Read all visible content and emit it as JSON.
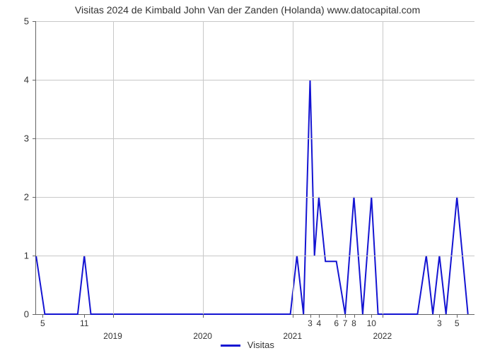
{
  "chart": {
    "type": "line",
    "title": "Visitas 2024 de Kimbald John Van der Zanden (Holanda) www.datocapital.com",
    "title_fontsize": 14,
    "background_color": "#ffffff",
    "grid_color": "#c8c8c8",
    "axis_color": "#646464",
    "line_color": "#1414d2",
    "line_width": 2,
    "label_fontsize": 13,
    "ylim": [
      0,
      5
    ],
    "ytick_step": 1,
    "yticks": [
      0,
      1,
      2,
      3,
      4,
      5
    ],
    "xticks_minor": [
      {
        "pos": 0.015,
        "label": "5"
      },
      {
        "pos": 0.11,
        "label": "11"
      },
      {
        "pos": 0.625,
        "label": "3"
      },
      {
        "pos": 0.645,
        "label": "4"
      },
      {
        "pos": 0.685,
        "label": "6"
      },
      {
        "pos": 0.705,
        "label": "7"
      },
      {
        "pos": 0.725,
        "label": "8"
      },
      {
        "pos": 0.765,
        "label": "10"
      },
      {
        "pos": 0.92,
        "label": "3"
      },
      {
        "pos": 0.96,
        "label": "5"
      }
    ],
    "xticks_year": [
      {
        "pos": 0.175,
        "label": "2019"
      },
      {
        "pos": 0.38,
        "label": "2020"
      },
      {
        "pos": 0.585,
        "label": "2021"
      },
      {
        "pos": 0.79,
        "label": "2022"
      }
    ],
    "series": [
      {
        "name": "Visitas",
        "color": "#1414d2",
        "points": [
          [
            0.0,
            1.0
          ],
          [
            0.02,
            0.0
          ],
          [
            0.095,
            0.0
          ],
          [
            0.11,
            1.0
          ],
          [
            0.125,
            0.0
          ],
          [
            0.58,
            0.0
          ],
          [
            0.595,
            1.0
          ],
          [
            0.61,
            0.0
          ],
          [
            0.625,
            4.0
          ],
          [
            0.635,
            1.0
          ],
          [
            0.645,
            2.0
          ],
          [
            0.66,
            0.9
          ],
          [
            0.685,
            0.9
          ],
          [
            0.705,
            0.0
          ],
          [
            0.725,
            2.0
          ],
          [
            0.745,
            0.0
          ],
          [
            0.765,
            2.0
          ],
          [
            0.78,
            0.0
          ],
          [
            0.87,
            0.0
          ],
          [
            0.89,
            1.0
          ],
          [
            0.905,
            0.0
          ],
          [
            0.92,
            1.0
          ],
          [
            0.935,
            0.0
          ],
          [
            0.96,
            2.0
          ],
          [
            0.985,
            0.0
          ]
        ]
      }
    ],
    "legend": {
      "label": "Visitas"
    }
  }
}
